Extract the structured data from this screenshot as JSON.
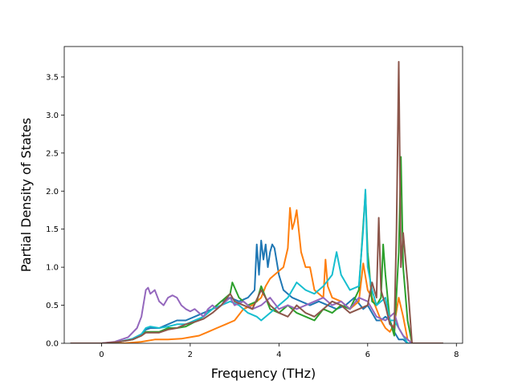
{
  "chart_data": {
    "type": "line",
    "title": "",
    "xlabel": "Frequency (THz)",
    "ylabel": "Partial Density of States",
    "xlim": [
      -0.84,
      8.14
    ],
    "ylim": [
      0,
      3.9
    ],
    "xticks": [
      0,
      2,
      4,
      6,
      8
    ],
    "yticks": [
      0.0,
      0.5,
      1.0,
      1.5,
      2.0,
      2.5,
      3.0,
      3.5
    ],
    "yticklabels": [
      "0.0",
      "0.5",
      "1.0",
      "1.5",
      "2.0",
      "2.5",
      "3.0",
      "3.5"
    ],
    "grid": false,
    "legend": "none",
    "series": [
      {
        "color": "#1f77b4",
        "x": [
          -0.7,
          0.0,
          0.4,
          0.7,
          0.9,
          1.0,
          1.1,
          1.3,
          1.5,
          1.7,
          1.9,
          2.1,
          2.3,
          2.5,
          2.7,
          2.9,
          3.1,
          3.3,
          3.45,
          3.5,
          3.55,
          3.6,
          3.65,
          3.7,
          3.75,
          3.8,
          3.85,
          3.9,
          4.0,
          4.1,
          4.3,
          4.5,
          4.7,
          4.9,
          5.1,
          5.3,
          5.5,
          5.7,
          5.9,
          6.0,
          6.1,
          6.2,
          6.3,
          6.4,
          6.5,
          6.6,
          6.7,
          6.8,
          6.9,
          7.0,
          7.7
        ],
        "y": [
          0.0,
          0.0,
          0.02,
          0.06,
          0.12,
          0.18,
          0.2,
          0.2,
          0.25,
          0.3,
          0.3,
          0.35,
          0.4,
          0.45,
          0.55,
          0.6,
          0.55,
          0.6,
          0.7,
          1.3,
          0.9,
          1.35,
          1.1,
          1.3,
          1.0,
          1.2,
          1.3,
          1.25,
          0.9,
          0.7,
          0.6,
          0.55,
          0.5,
          0.55,
          0.5,
          0.45,
          0.5,
          0.6,
          0.45,
          0.5,
          0.4,
          0.3,
          0.3,
          0.35,
          0.3,
          0.15,
          0.05,
          0.05,
          0.0,
          0.0,
          0.0
        ]
      },
      {
        "color": "#ff7f0e",
        "x": [
          -0.7,
          0.0,
          0.5,
          0.9,
          1.2,
          1.5,
          1.8,
          2.0,
          2.2,
          2.4,
          2.6,
          2.8,
          3.0,
          3.2,
          3.4,
          3.6,
          3.7,
          3.8,
          3.9,
          4.0,
          4.1,
          4.2,
          4.25,
          4.3,
          4.35,
          4.4,
          4.5,
          4.6,
          4.7,
          4.8,
          4.9,
          5.0,
          5.05,
          5.1,
          5.2,
          5.4,
          5.6,
          5.8,
          5.9,
          6.0,
          6.1,
          6.2,
          6.3,
          6.4,
          6.5,
          6.6,
          6.7,
          6.8,
          6.9,
          7.0,
          7.7
        ],
        "y": [
          0.0,
          0.0,
          0.0,
          0.02,
          0.05,
          0.05,
          0.06,
          0.08,
          0.1,
          0.15,
          0.2,
          0.25,
          0.3,
          0.45,
          0.5,
          0.6,
          0.75,
          0.85,
          0.9,
          0.95,
          1.0,
          1.25,
          1.78,
          1.5,
          1.6,
          1.75,
          1.2,
          1.0,
          1.0,
          0.7,
          0.65,
          0.6,
          1.1,
          0.75,
          0.6,
          0.55,
          0.45,
          0.55,
          1.05,
          0.7,
          0.6,
          0.45,
          0.3,
          0.2,
          0.15,
          0.25,
          0.6,
          0.35,
          0.05,
          0.0,
          0.0
        ]
      },
      {
        "color": "#2ca02c",
        "x": [
          -0.7,
          0.0,
          0.4,
          0.7,
          0.9,
          1.0,
          1.1,
          1.3,
          1.5,
          1.7,
          1.9,
          2.1,
          2.3,
          2.5,
          2.7,
          2.9,
          2.95,
          3.1,
          3.3,
          3.5,
          3.6,
          3.7,
          3.8,
          4.0,
          4.2,
          4.4,
          4.6,
          4.8,
          5.0,
          5.2,
          5.4,
          5.6,
          5.8,
          5.95,
          6.0,
          6.1,
          6.2,
          6.3,
          6.35,
          6.4,
          6.5,
          6.6,
          6.7,
          6.75,
          6.8,
          6.9,
          7.0,
          7.7
        ],
        "y": [
          0.0,
          0.0,
          0.02,
          0.05,
          0.1,
          0.15,
          0.15,
          0.15,
          0.2,
          0.2,
          0.22,
          0.28,
          0.35,
          0.45,
          0.55,
          0.65,
          0.8,
          0.6,
          0.5,
          0.55,
          0.75,
          0.6,
          0.45,
          0.4,
          0.5,
          0.4,
          0.35,
          0.3,
          0.45,
          0.4,
          0.5,
          0.45,
          0.7,
          1.98,
          1.2,
          0.55,
          0.5,
          0.6,
          1.3,
          0.9,
          0.3,
          0.1,
          1.2,
          2.45,
          1.0,
          0.3,
          0.0,
          0.0
        ]
      },
      {
        "color": "#17becf",
        "x": [
          -0.7,
          0.0,
          0.4,
          0.7,
          0.9,
          1.0,
          1.1,
          1.3,
          1.5,
          1.7,
          1.9,
          2.1,
          2.3,
          2.5,
          2.7,
          2.9,
          3.1,
          3.3,
          3.5,
          3.6,
          3.8,
          4.0,
          4.2,
          4.4,
          4.6,
          4.8,
          5.0,
          5.2,
          5.3,
          5.4,
          5.6,
          5.8,
          5.9,
          5.95,
          6.0,
          6.1,
          6.2,
          6.4,
          6.5,
          6.6,
          6.7,
          6.8,
          6.9,
          7.0,
          7.7
        ],
        "y": [
          0.0,
          0.0,
          0.02,
          0.06,
          0.12,
          0.2,
          0.22,
          0.2,
          0.22,
          0.25,
          0.25,
          0.3,
          0.35,
          0.45,
          0.5,
          0.55,
          0.5,
          0.4,
          0.35,
          0.3,
          0.4,
          0.5,
          0.6,
          0.8,
          0.7,
          0.65,
          0.75,
          0.9,
          1.2,
          0.9,
          0.7,
          0.75,
          1.5,
          2.02,
          1.0,
          0.7,
          0.5,
          0.6,
          0.3,
          0.3,
          0.2,
          0.1,
          0.0,
          0.0,
          0.0
        ]
      },
      {
        "color": "#9467bd",
        "x": [
          -0.7,
          0.0,
          0.3,
          0.6,
          0.8,
          0.9,
          1.0,
          1.05,
          1.1,
          1.2,
          1.3,
          1.4,
          1.5,
          1.6,
          1.7,
          1.8,
          1.9,
          2.0,
          2.1,
          2.2,
          2.3,
          2.4,
          2.5,
          2.6,
          2.7,
          2.8,
          2.9,
          3.0,
          3.2,
          3.4,
          3.6,
          3.8,
          4.0,
          4.2,
          4.4,
          4.6,
          4.8,
          5.0,
          5.2,
          5.4,
          5.6,
          5.8,
          6.0,
          6.2,
          6.4,
          6.6,
          6.7,
          6.8,
          6.9,
          7.0,
          7.7
        ],
        "y": [
          0.0,
          0.0,
          0.02,
          0.08,
          0.2,
          0.35,
          0.7,
          0.73,
          0.65,
          0.7,
          0.55,
          0.5,
          0.6,
          0.63,
          0.6,
          0.5,
          0.45,
          0.42,
          0.45,
          0.4,
          0.35,
          0.45,
          0.5,
          0.45,
          0.5,
          0.55,
          0.6,
          0.5,
          0.55,
          0.45,
          0.5,
          0.6,
          0.45,
          0.5,
          0.45,
          0.5,
          0.55,
          0.6,
          0.5,
          0.55,
          0.45,
          0.6,
          0.55,
          0.35,
          0.3,
          0.4,
          0.2,
          0.1,
          0.05,
          0.0,
          0.0
        ]
      },
      {
        "color": "#8c564b",
        "x": [
          -0.7,
          0.0,
          0.4,
          0.7,
          0.9,
          1.0,
          1.1,
          1.3,
          1.5,
          1.7,
          1.9,
          2.1,
          2.3,
          2.5,
          2.7,
          2.9,
          3.0,
          3.2,
          3.4,
          3.6,
          3.8,
          4.0,
          4.2,
          4.4,
          4.6,
          4.8,
          5.0,
          5.2,
          5.4,
          5.6,
          5.8,
          6.0,
          6.1,
          6.2,
          6.25,
          6.3,
          6.4,
          6.5,
          6.6,
          6.65,
          6.7,
          6.75,
          6.8,
          6.9,
          7.0,
          7.7
        ],
        "y": [
          0.0,
          0.0,
          0.02,
          0.05,
          0.1,
          0.14,
          0.14,
          0.14,
          0.18,
          0.2,
          0.25,
          0.28,
          0.32,
          0.4,
          0.5,
          0.65,
          0.55,
          0.5,
          0.45,
          0.7,
          0.5,
          0.4,
          0.35,
          0.5,
          0.4,
          0.35,
          0.45,
          0.55,
          0.5,
          0.4,
          0.45,
          0.5,
          0.8,
          0.6,
          1.65,
          0.7,
          0.5,
          0.25,
          0.2,
          1.5,
          3.7,
          1.0,
          1.45,
          0.8,
          0.0,
          0.0
        ]
      }
    ]
  }
}
